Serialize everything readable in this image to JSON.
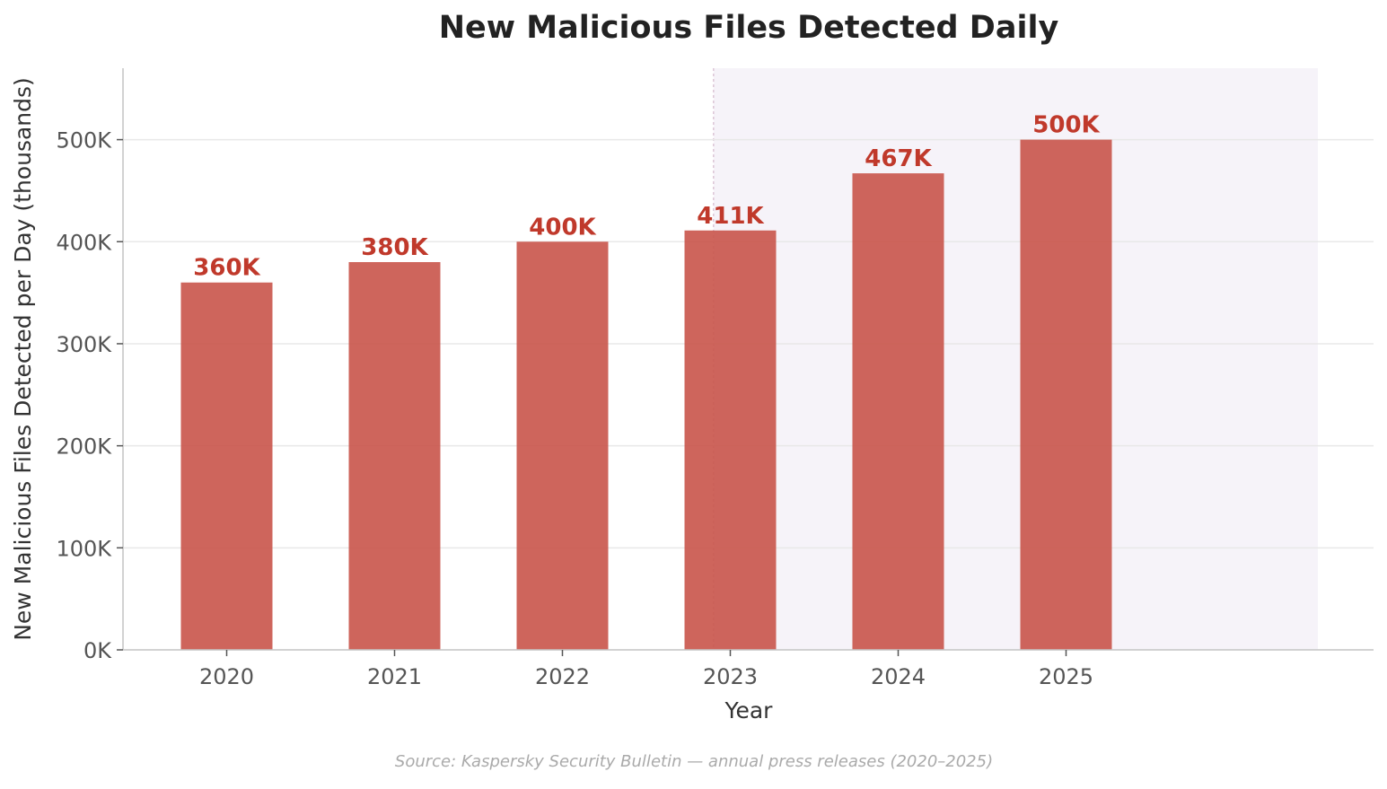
{
  "chart_data": {
    "type": "bar",
    "title": "New Malicious Files Detected Daily",
    "xlabel": "Year",
    "ylabel": "New Malicious Files Detected per Day (thousands)",
    "categories": [
      "2020",
      "2021",
      "2022",
      "2023",
      "2024",
      "2025"
    ],
    "values": [
      360,
      380,
      400,
      411,
      467,
      500
    ],
    "value_labels": [
      "360K",
      "380K",
      "400K",
      "411K",
      "467K",
      "500K"
    ],
    "yticks": [
      0,
      100,
      200,
      300,
      400,
      500
    ],
    "ytick_labels": [
      "0K",
      "100K",
      "200K",
      "300K",
      "400K",
      "500K"
    ],
    "ylim": [
      0,
      570
    ],
    "grid": "horizontal",
    "highlight_region": {
      "from_year": 2023,
      "to_year": 2026
    },
    "source": "Source: Kaspersky Security Bulletin — annual press releases (2020–2025)"
  },
  "colors": {
    "bar": "#c9544a",
    "bar_label": "#c0392b",
    "highlight": "#f6f3f9",
    "highlight_line": "#ddc6d6"
  }
}
